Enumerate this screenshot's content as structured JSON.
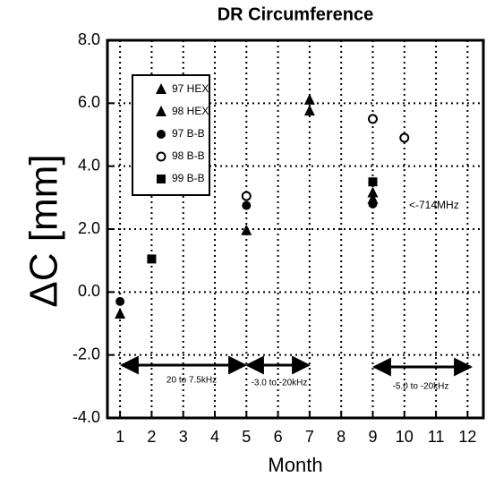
{
  "chart_data": {
    "type": "scatter",
    "title": "DR Circumference",
    "xlabel": "Month",
    "ylabel": "ΔC [mm]",
    "xlim": [
      0.6,
      12.5
    ],
    "ylim": [
      -4.0,
      8.0
    ],
    "xticks": [
      1,
      2,
      3,
      4,
      5,
      6,
      7,
      8,
      9,
      10,
      11,
      12
    ],
    "yticks": [
      {
        "value": -4,
        "label": "-4.0"
      },
      {
        "value": -2,
        "label": "-2.0"
      },
      {
        "value": 0,
        "label": "0.0"
      },
      {
        "value": 2,
        "label": "2.0"
      },
      {
        "value": 4,
        "label": "4.0"
      },
      {
        "value": 6,
        "label": "6.0"
      },
      {
        "value": 8,
        "label": "8.0"
      }
    ],
    "grid": true,
    "legend": "upper left",
    "series": [
      {
        "name": "97 HEX",
        "color": "#000000",
        "marker": "triangle",
        "x": [
          1,
          5,
          7,
          9
        ],
        "values": [
          -0.7,
          1.95,
          6.1,
          3.15
        ]
      },
      {
        "name": "98 HEX",
        "color": "#000000",
        "marker": "triangle",
        "x": [
          7,
          9
        ],
        "values": [
          5.75,
          2.95
        ]
      },
      {
        "name": "97 B-B",
        "color": "#000000",
        "marker": "circle",
        "x": [
          1,
          5,
          9
        ],
        "values": [
          -0.3,
          2.75,
          2.8
        ]
      },
      {
        "name": "98 B-B",
        "color": "#000000",
        "marker": "open-circle",
        "x": [
          5,
          9,
          10
        ],
        "values": [
          3.05,
          5.5,
          4.9
        ]
      },
      {
        "name": "99 B-B",
        "color": "#000000",
        "marker": "square",
        "x": [
          2,
          9
        ],
        "values": [
          1.05,
          3.5
        ]
      }
    ],
    "annotations": [
      "<-714MHz",
      "20 to 7.5kHz",
      "-3.0 to -20kHz",
      "-5.0 to -20kHz"
    ]
  }
}
